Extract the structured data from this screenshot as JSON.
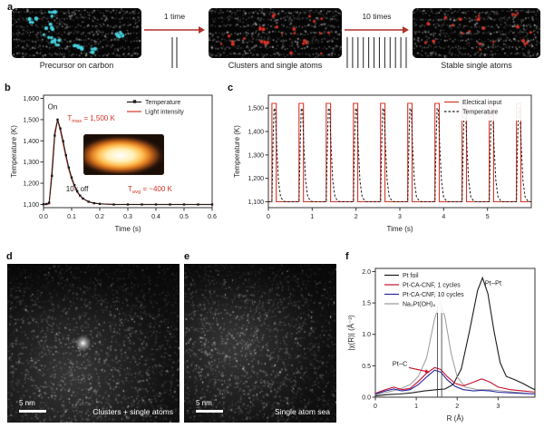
{
  "panels": {
    "a": {
      "label": "a",
      "arrow_color": "#b03228",
      "steps": [
        {
          "caption": "Precursor on carbon",
          "dot_color": "#45d4e0",
          "mode": "clusters"
        },
        {
          "caption": "Clusters and single atoms",
          "dot_color": "#df3222",
          "mode": "mixed"
        },
        {
          "caption": "Stable single atoms",
          "dot_color": "#df3222",
          "mode": "singles"
        }
      ],
      "transitions": [
        {
          "label": "1 time",
          "pulse_lines": 2
        },
        {
          "label": "10 times",
          "pulse_lines": 12
        }
      ]
    },
    "b": {
      "label": "b"
    },
    "c": {
      "label": "c"
    },
    "d": {
      "label": "d",
      "scale_text": "5 nm",
      "caption": "Clusters + single atoms"
    },
    "e": {
      "label": "e",
      "scale_text": "5 nm",
      "caption": "Single atom sea"
    },
    "f": {
      "label": "f"
    }
  },
  "chart_data": [
    {
      "id": "b",
      "type": "line",
      "xlabel": "Time (s)",
      "ylabel": "Temperature (K)",
      "xlim": [
        0,
        0.6
      ],
      "ylim": [
        1085,
        1615
      ],
      "xticks": [
        0,
        0.1,
        0.2,
        0.3,
        0.4,
        0.5,
        0.6
      ],
      "xtick_labels": [
        "0.0",
        "0.1",
        "0.2",
        "0.3",
        "0.4",
        "0.5",
        "0.6"
      ],
      "yticks": [
        1100,
        1200,
        1300,
        1400,
        1500,
        1600
      ],
      "ytick_labels": [
        "1,100",
        "1,200",
        "1,300",
        "1,400",
        "1,500",
        "1,600"
      ],
      "legend": {
        "pos": "tr",
        "width": 94,
        "items": [
          {
            "label": "Temperature",
            "color": "#1a1a1a",
            "marker": "square"
          },
          {
            "label": "Light intensity",
            "color": "#d63427"
          }
        ]
      },
      "series": [
        {
          "name": "Light intensity",
          "color": "#d63427",
          "width": 1.2,
          "points": [
            [
              0,
              1100
            ],
            [
              0.02,
              1102
            ],
            [
              0.03,
              1260
            ],
            [
              0.04,
              1440
            ],
            [
              0.05,
              1498
            ],
            [
              0.06,
              1448
            ],
            [
              0.07,
              1385
            ],
            [
              0.08,
              1322
            ],
            [
              0.09,
              1266
            ],
            [
              0.1,
              1220
            ],
            [
              0.11,
              1186
            ],
            [
              0.12,
              1158
            ],
            [
              0.13,
              1140
            ],
            [
              0.15,
              1120
            ],
            [
              0.17,
              1109
            ],
            [
              0.2,
              1103
            ],
            [
              0.25,
              1100
            ],
            [
              0.3,
              1100
            ],
            [
              0.4,
              1100
            ],
            [
              0.5,
              1100
            ],
            [
              0.6,
              1100
            ]
          ]
        },
        {
          "name": "Temperature",
          "color": "#1a1a1a",
          "width": 1,
          "marker": "square",
          "points": [
            [
              0,
              1101
            ],
            [
              0.01,
              1102
            ],
            [
              0.02,
              1108
            ],
            [
              0.03,
              1235
            ],
            [
              0.04,
              1425
            ],
            [
              0.05,
              1500
            ],
            [
              0.06,
              1458
            ],
            [
              0.07,
              1398
            ],
            [
              0.08,
              1332
            ],
            [
              0.09,
              1274
            ],
            [
              0.1,
              1227
            ],
            [
              0.11,
              1191
            ],
            [
              0.12,
              1162
            ],
            [
              0.13,
              1142
            ],
            [
              0.14,
              1128
            ],
            [
              0.16,
              1113
            ],
            [
              0.18,
              1106
            ],
            [
              0.2,
              1103
            ],
            [
              0.25,
              1100
            ],
            [
              0.3,
              1100
            ],
            [
              0.35,
              1100
            ],
            [
              0.4,
              1100
            ],
            [
              0.45,
              1100
            ],
            [
              0.5,
              1100
            ],
            [
              0.55,
              1100
            ],
            [
              0.6,
              1100
            ]
          ]
        }
      ],
      "annotations": [
        {
          "type": "text",
          "text": "On",
          "x": 0.015,
          "y": 1548,
          "color": "#1a1a1a",
          "size": 8
        },
        {
          "type": "text",
          "base": "T",
          "sub": "max",
          "rest": " = 1,500 K",
          "x": 0.085,
          "y": 1495,
          "color": "#d63427",
          "size": 8
        },
        {
          "type": "text",
          "text": "10× off",
          "x": 0.08,
          "y": 1162,
          "color": "#1a1a1a",
          "size": 8
        },
        {
          "type": "text",
          "base": "T",
          "sub": "avg",
          "rest": " = ~400 K",
          "x": 0.3,
          "y": 1162,
          "color": "#d63427",
          "size": 8
        }
      ]
    },
    {
      "id": "c",
      "type": "line",
      "xlabel": "Time (s)",
      "ylabel": "Temperature (K)",
      "xlim": [
        0,
        6
      ],
      "ylim": [
        1075,
        1555
      ],
      "xticks": [
        0,
        1,
        2,
        3,
        4,
        5
      ],
      "xtick_labels": [
        "0",
        "1",
        "2",
        "3",
        "4",
        "5"
      ],
      "yticks": [
        1100,
        1200,
        1300,
        1400,
        1500
      ],
      "ytick_labels": [
        "1,100",
        "1,200",
        "1,300",
        "1,400",
        "1,500"
      ],
      "legend": {
        "pos": "tr",
        "width": 96,
        "items": [
          {
            "label": "Electical input",
            "color": "#d63427"
          },
          {
            "label": "Temperature",
            "color": "#1a1a1a",
            "dash": true
          }
        ]
      },
      "pulse_train": {
        "count": 10,
        "start": 0.08,
        "period": 0.62,
        "base": 1100,
        "electrical": {
          "high": 1520,
          "on_width": 0.1,
          "color": "#d63427",
          "width": 1.1
        },
        "temperature": {
          "color": "#1a1a1a",
          "dash": true,
          "width": 1,
          "profile": [
            [
              0,
              1100
            ],
            [
              0.03,
              1380
            ],
            [
              0.05,
              1500
            ],
            [
              0.08,
              1490
            ],
            [
              0.11,
              1340
            ],
            [
              0.15,
              1190
            ],
            [
              0.2,
              1120
            ],
            [
              0.27,
              1102
            ],
            [
              0.33,
              1100
            ]
          ]
        }
      },
      "annotations": []
    },
    {
      "id": "f",
      "type": "line",
      "xlabel": "R (Å)",
      "ylabel": "|χ(R)| (Å⁻³)",
      "xlim": [
        0,
        3.9
      ],
      "ylim": [
        0,
        2.05
      ],
      "xticks": [
        0,
        1,
        2,
        3
      ],
      "xtick_labels": [
        "0",
        "1",
        "2",
        "3"
      ],
      "yticks": [
        0,
        0.5,
        1,
        1.5,
        2
      ],
      "ytick_labels": [
        "0.0",
        "0.5",
        "1.0",
        "1.5",
        "2.0"
      ],
      "legend": {
        "pos": "tl",
        "items": [
          {
            "label": "Pt foil",
            "color": "#1a1a1a"
          },
          {
            "label": "Pt-CA-CNF, 1 cycles",
            "color": "#c51230"
          },
          {
            "label": "Pt-CA-CNF, 10 cycles",
            "color": "#27279b"
          },
          {
            "label": "Na₂Pt(OH)₆",
            "color": "#9a9a9a"
          }
        ]
      },
      "series": [
        {
          "name": "Pt foil",
          "color": "#1a1a1a",
          "width": 1.1,
          "points": [
            [
              0,
              0.02
            ],
            [
              0.3,
              0.04
            ],
            [
              0.6,
              0.05
            ],
            [
              0.9,
              0.07
            ],
            [
              1.2,
              0.1
            ],
            [
              1.5,
              0.12
            ],
            [
              1.7,
              0.13
            ],
            [
              1.9,
              0.2
            ],
            [
              2.1,
              0.45
            ],
            [
              2.3,
              1.05
            ],
            [
              2.5,
              1.7
            ],
            [
              2.62,
              1.9
            ],
            [
              2.75,
              1.65
            ],
            [
              2.9,
              1.05
            ],
            [
              3.05,
              0.55
            ],
            [
              3.2,
              0.33
            ],
            [
              3.4,
              0.28
            ],
            [
              3.6,
              0.22
            ],
            [
              3.8,
              0.15
            ],
            [
              3.9,
              0.12
            ]
          ]
        },
        {
          "name": "Na₂Pt(OH)₆",
          "color": "#9a9a9a",
          "width": 1,
          "points": [
            [
              0,
              0.04
            ],
            [
              0.3,
              0.08
            ],
            [
              0.6,
              0.13
            ],
            [
              0.85,
              0.2
            ],
            [
              1.05,
              0.33
            ],
            [
              1.25,
              0.62
            ],
            [
              1.45,
              1.25
            ],
            [
              1.58,
              1.52
            ],
            [
              1.7,
              1.28
            ],
            [
              1.85,
              0.7
            ],
            [
              2,
              0.32
            ],
            [
              2.2,
              0.16
            ],
            [
              2.5,
              0.12
            ],
            [
              2.8,
              0.12
            ],
            [
              3.1,
              0.1
            ],
            [
              3.4,
              0.08
            ],
            [
              3.7,
              0.06
            ],
            [
              3.9,
              0.05
            ]
          ]
        },
        {
          "name": "Pt-CA-CNF, 1 cycles",
          "color": "#c51230",
          "width": 1.1,
          "points": [
            [
              0,
              0.06
            ],
            [
              0.25,
              0.12
            ],
            [
              0.45,
              0.16
            ],
            [
              0.65,
              0.12
            ],
            [
              0.85,
              0.14
            ],
            [
              1.05,
              0.25
            ],
            [
              1.25,
              0.38
            ],
            [
              1.45,
              0.47
            ],
            [
              1.6,
              0.44
            ],
            [
              1.75,
              0.33
            ],
            [
              1.95,
              0.22
            ],
            [
              2.15,
              0.18
            ],
            [
              2.4,
              0.24
            ],
            [
              2.6,
              0.29
            ],
            [
              2.8,
              0.24
            ],
            [
              3,
              0.16
            ],
            [
              3.3,
              0.12
            ],
            [
              3.6,
              0.1
            ],
            [
              3.9,
              0.08
            ]
          ]
        },
        {
          "name": "Pt-CA-CNF, 10 cycles",
          "color": "#27279b",
          "width": 1.1,
          "points": [
            [
              0,
              0.05
            ],
            [
              0.25,
              0.1
            ],
            [
              0.45,
              0.13
            ],
            [
              0.65,
              0.1
            ],
            [
              0.85,
              0.12
            ],
            [
              1.05,
              0.2
            ],
            [
              1.25,
              0.32
            ],
            [
              1.45,
              0.43
            ],
            [
              1.6,
              0.4
            ],
            [
              1.75,
              0.28
            ],
            [
              1.95,
              0.17
            ],
            [
              2.15,
              0.12
            ],
            [
              2.4,
              0.1
            ],
            [
              2.6,
              0.11
            ],
            [
              2.8,
              0.1
            ],
            [
              3,
              0.08
            ],
            [
              3.3,
              0.07
            ],
            [
              3.6,
              0.06
            ],
            [
              3.9,
              0.05
            ]
          ]
        }
      ],
      "annotations": [
        {
          "type": "vline",
          "x": 1.52,
          "y0": 0,
          "y1": 1.45,
          "color": "#333333",
          "width": 0.8
        },
        {
          "type": "vline",
          "x": 1.62,
          "y0": 0,
          "y1": 1.45,
          "color": "#333333",
          "width": 0.8
        },
        {
          "type": "text",
          "text": "Pt–O",
          "x": 1.4,
          "y": 1.62,
          "color": "#1a1a1a",
          "size": 7.5,
          "anchor": "middle"
        },
        {
          "type": "text",
          "text": "Pt–Pt",
          "x": 2.88,
          "y": 1.78,
          "color": "#1a1a1a",
          "size": 7.5,
          "anchor": "middle"
        },
        {
          "type": "text",
          "text": "Pt–C",
          "x": 0.6,
          "y": 0.5,
          "color": "#1a1a1a",
          "size": 7.5,
          "anchor": "middle"
        },
        {
          "type": "arrow",
          "x1": 0.82,
          "y1": 0.47,
          "x2": 1.32,
          "y2": 0.4,
          "color": "#c51230"
        }
      ]
    }
  ]
}
